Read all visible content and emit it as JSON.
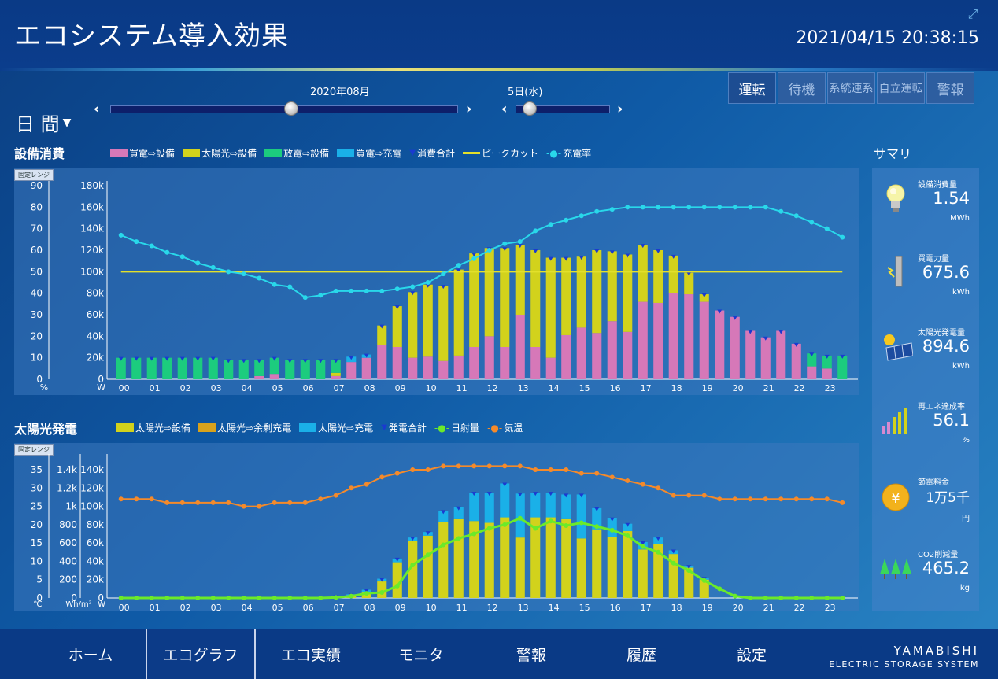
{
  "header": {
    "title": "エコシステム導入効果",
    "datetime": "2021/04/15 20:38:15"
  },
  "controls": {
    "period": "日 間",
    "month_label": "2020年08月",
    "day_label": "5日(水)",
    "month_slider_value": 0.52,
    "day_slider_value": 0.14
  },
  "modes": [
    "運転",
    "待機",
    "系統連系",
    "自立運転",
    "警報"
  ],
  "consumption": {
    "title": "設備消費",
    "range_tag": "固定レンジ",
    "legend": {
      "grid_to_equipment": "買電⇨設備",
      "solar_to_equipment": "太陽光⇨設備",
      "discharge_to_equipment": "放電⇨設備",
      "grid_to_charge": "買電⇨充電",
      "total": "消費合計",
      "peak_cut": "ピークカット",
      "charge_rate": "充電率"
    },
    "left_unit": "%",
    "right_unit": "W"
  },
  "solar": {
    "title": "太陽光発電",
    "range_tag": "固定レンジ",
    "legend": {
      "solar_to_equipment": "太陽光⇨設備",
      "solar_surplus_charge": "太陽光⇨余剰充電",
      "solar_to_charge": "太陽光⇨充電",
      "total": "発電合計",
      "irradiance": "日射量",
      "temperature": "気温"
    },
    "unit_temp": "℃",
    "unit_irr": "Wh/m²",
    "unit_w": "W"
  },
  "chart_data": [
    {
      "type": "bar",
      "title": "設備消費",
      "categories": [
        "00",
        "01",
        "02",
        "03",
        "04",
        "05",
        "06",
        "07",
        "08",
        "09",
        "10",
        "11",
        "12",
        "13",
        "14",
        "15",
        "16",
        "17",
        "18",
        "19",
        "20",
        "21",
        "22",
        "23"
      ],
      "ylim": [
        0,
        180000
      ],
      "yticks": [
        "0",
        "20k",
        "40k",
        "60k",
        "80k",
        "100k",
        "120k",
        "140k",
        "160k",
        "180k"
      ],
      "ylim2": [
        0,
        90
      ],
      "yticks2": [
        "0",
        "10",
        "20",
        "30",
        "40",
        "50",
        "60",
        "70",
        "80",
        "90"
      ],
      "colors": {
        "grid": "#d678b8",
        "solar": "#d2d21c",
        "discharge": "#1ccc7e",
        "charge": "#1ab0e8",
        "peak": "#e3e02b",
        "rate": "#29d8ea",
        "total": "#1a3ad0"
      },
      "series": [
        {
          "name": "買電⇨設備",
          "values": [
            [
              0,
              0
            ],
            [
              0,
              0
            ],
            [
              0,
              0
            ],
            [
              0,
              0
            ],
            [
              0,
              0
            ],
            [
              0,
              0
            ],
            [
              0,
              0
            ],
            [
              0,
              0
            ],
            [
              0,
              0
            ],
            [
              0,
              0
            ],
            [
              0,
              0
            ],
            [
              0,
              0
            ],
            [
              0,
              0
            ],
            [
              0,
              0
            ],
            [
              0,
              0
            ],
            [
              0,
              0
            ],
            [
              0,
              0
            ],
            [
              0,
              0
            ],
            [
              0,
              0
            ],
            [
              0,
              0
            ],
            [
              0,
              0
            ],
            [
              0,
              0
            ],
            [
              0,
              0
            ],
            [
              0,
              0
            ],
            [
              0,
              0
            ],
            [
              0,
              0
            ],
            [
              0,
              0
            ],
            [
              0,
              0
            ],
            [
              0,
              0
            ],
            [
              0,
              0
            ],
            [
              0,
              0
            ],
            [
              0,
              0
            ],
            [
              0,
              0
            ],
            [
              0,
              0
            ],
            [
              0,
              0
            ],
            [
              0,
              0
            ],
            [
              0,
              0
            ],
            [
              0,
              0
            ],
            [
              0,
              0
            ],
            [
              0,
              0
            ],
            [
              0,
              0
            ],
            [
              0,
              0
            ],
            [
              0,
              0
            ],
            [
              0,
              0
            ],
            [
              0,
              0
            ],
            [
              0,
              0
            ],
            [
              0,
              0
            ],
            [
              0,
              0
            ]
          ]
        }
      ],
      "half_hour_bars": {
        "grid": [
          0,
          0,
          0,
          0,
          0,
          0,
          0,
          0,
          0,
          3000,
          5000,
          0,
          0,
          0,
          3000,
          16000,
          20000,
          32000,
          30000,
          20000,
          21000,
          17000,
          22000,
          30000,
          40000,
          30000,
          60000,
          30000,
          20000,
          41000,
          48000,
          43000,
          54000,
          44000,
          72000,
          71000,
          80000,
          79000,
          72000,
          64000,
          58000,
          45000,
          39000,
          45000,
          33000,
          12000,
          10000,
          0
        ],
        "solar": [
          0,
          0,
          0,
          0,
          0,
          0,
          0,
          0,
          0,
          0,
          0,
          0,
          0,
          0,
          3000,
          0,
          0,
          18000,
          38000,
          61000,
          67000,
          70000,
          80000,
          87000,
          82000,
          92000,
          65000,
          90000,
          93000,
          72000,
          66000,
          77000,
          65000,
          72000,
          53000,
          49000,
          35000,
          20000,
          7000,
          0,
          0,
          0,
          0,
          0,
          0,
          0,
          0,
          0
        ],
        "discharge": [
          20000,
          20000,
          20000,
          20000,
          20000,
          20000,
          20000,
          18000,
          18000,
          15000,
          15000,
          18000,
          18000,
          18000,
          12000,
          0,
          0,
          0,
          0,
          0,
          0,
          0,
          0,
          0,
          0,
          0,
          0,
          0,
          0,
          0,
          0,
          0,
          0,
          0,
          0,
          0,
          0,
          0,
          0,
          0,
          0,
          0,
          0,
          0,
          0,
          12000,
          12000,
          22000
        ],
        "charge": [
          0,
          0,
          0,
          0,
          0,
          0,
          0,
          0,
          0,
          0,
          0,
          0,
          0,
          0,
          0,
          5000,
          3000,
          0,
          0,
          0,
          0,
          0,
          0,
          0,
          0,
          0,
          0,
          0,
          0,
          0,
          0,
          0,
          0,
          0,
          0,
          0,
          0,
          0,
          0,
          0,
          0,
          0,
          0,
          0,
          0,
          0,
          0,
          0
        ]
      },
      "peak_cut": 100000,
      "charge_rate": [
        67,
        64,
        62,
        59,
        57,
        54,
        52,
        50,
        49,
        47,
        44,
        43,
        38,
        39,
        41,
        41,
        41,
        41,
        42,
        43,
        45,
        49,
        53,
        56,
        60,
        63,
        64,
        69,
        72,
        74,
        76,
        78,
        79,
        80,
        80,
        80,
        80,
        80,
        80,
        80,
        80,
        80,
        80,
        78,
        76,
        73,
        70,
        66
      ]
    },
    {
      "type": "bar",
      "title": "太陽光発電",
      "categories": [
        "00",
        "01",
        "02",
        "03",
        "04",
        "05",
        "06",
        "07",
        "08",
        "09",
        "10",
        "11",
        "12",
        "13",
        "14",
        "15",
        "16",
        "17",
        "18",
        "19",
        "20",
        "21",
        "22",
        "23"
      ],
      "ylim": [
        0,
        140000
      ],
      "yticks": [
        "0",
        "20k",
        "40k",
        "60k",
        "80k",
        "100k",
        "120k",
        "140k"
      ],
      "ylim_irr": [
        0,
        1400
      ],
      "yticks_irr": [
        "0",
        "200",
        "400",
        "600",
        "800",
        "1k",
        "1.2k",
        "1.4k"
      ],
      "ylim_temp": [
        0,
        35
      ],
      "yticks_temp": [
        "0",
        "5",
        "10",
        "15",
        "20",
        "25",
        "30",
        "35"
      ],
      "colors": {
        "solar": "#d2d21c",
        "surplus": "#d8a21c",
        "charge": "#1ab0e8",
        "irr": "#6bea2a",
        "temp": "#f58a2a",
        "total": "#1a3ad0"
      },
      "half_hour_bars": {
        "solar": [
          0,
          0,
          0,
          0,
          0,
          0,
          0,
          0,
          0,
          0,
          0,
          0,
          0,
          0,
          2000,
          3000,
          6000,
          18000,
          39000,
          62000,
          68000,
          83000,
          86000,
          84000,
          82000,
          88000,
          66000,
          88000,
          88000,
          86000,
          65000,
          75000,
          67000,
          73000,
          53000,
          59000,
          48000,
          33000,
          20000,
          0,
          0,
          0,
          0,
          0,
          0,
          0,
          0,
          0
        ],
        "surplus": [
          0,
          0,
          0,
          0,
          0,
          0,
          0,
          0,
          0,
          0,
          0,
          0,
          0,
          0,
          0,
          0,
          0,
          0,
          0,
          0,
          0,
          0,
          0,
          0,
          0,
          0,
          0,
          0,
          0,
          0,
          0,
          0,
          0,
          0,
          0,
          0,
          0,
          0,
          0,
          0,
          0,
          0,
          0,
          0,
          0,
          0,
          0,
          0
        ],
        "charge": [
          0,
          0,
          0,
          0,
          0,
          0,
          0,
          0,
          0,
          0,
          0,
          0,
          0,
          0,
          0,
          1000,
          3000,
          3000,
          4000,
          4000,
          4000,
          12000,
          13000,
          31000,
          33000,
          37000,
          48000,
          27000,
          27000,
          27000,
          48000,
          23000,
          20000,
          8000,
          8000,
          7000,
          4000,
          2000,
          2000,
          0,
          0,
          0,
          0,
          0,
          0,
          0,
          0,
          0
        ]
      },
      "irradiance": [
        0,
        0,
        0,
        0,
        0,
        0,
        0,
        0,
        0,
        0,
        0,
        0,
        0,
        0,
        5,
        20,
        50,
        60,
        130,
        360,
        470,
        580,
        650,
        700,
        760,
        800,
        870,
        760,
        840,
        790,
        820,
        780,
        740,
        680,
        560,
        500,
        380,
        300,
        190,
        100,
        20,
        0,
        0,
        0,
        0,
        0,
        0,
        0
      ],
      "temperature": [
        27,
        27,
        27,
        26,
        26,
        26,
        26,
        26,
        25,
        25,
        26,
        26,
        26,
        27,
        28,
        30,
        31,
        33,
        34,
        35,
        35,
        36,
        36,
        36,
        36,
        36,
        36,
        35,
        35,
        35,
        34,
        34,
        33,
        32,
        31,
        30,
        28,
        28,
        28,
        27,
        27,
        27,
        27,
        27,
        27,
        27,
        27,
        26
      ]
    }
  ],
  "summary": {
    "title": "サマリ",
    "items": [
      {
        "label": "設備消費量",
        "value": "1.54",
        "unit": "MWh",
        "icon": "lightbulb-icon"
      },
      {
        "label": "買電力量",
        "value": "675.6",
        "unit": "kWh",
        "icon": "power-pole-icon"
      },
      {
        "label": "太陽光発電量",
        "value": "894.6",
        "unit": "kWh",
        "icon": "solar-panel-icon"
      },
      {
        "label": "再エネ達成率",
        "value": "56.1",
        "unit": "%",
        "icon": "bar-level-icon"
      },
      {
        "label": "節電料金",
        "value": "1万5千",
        "unit": "円",
        "icon": "yen-coin-icon"
      },
      {
        "label": "CO2削減量",
        "value": "465.2",
        "unit": "kg",
        "icon": "trees-icon"
      }
    ]
  },
  "nav": [
    "ホーム",
    "エコグラフ",
    "エコ実績",
    "モニタ",
    "警報",
    "履歴",
    "設定"
  ],
  "brand": {
    "name": "YAMABISHI",
    "sub": "ELECTRIC STORAGE SYSTEM"
  }
}
